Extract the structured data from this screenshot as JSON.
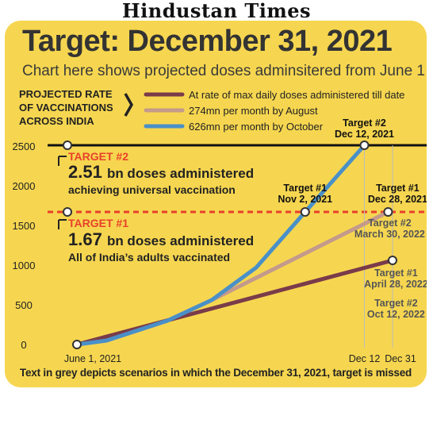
{
  "masthead": "Hindustan Times",
  "title": "Target: December 31, 2021",
  "subtitle": "Chart here shows projected doses adminsitered from June 1",
  "footnote": "Text in grey depicts scenarios in which the December 31, 2021, target is missed",
  "legend": {
    "heading": [
      "PROJECTED RATE",
      "OF VACCINATIONS",
      "ACROSS INDIA"
    ]
  },
  "targets": {
    "t2_label": "TARGET #2",
    "t2_value": "2.51",
    "t2_value_unit": "bn doses administered",
    "t2_desc": "achieving universal vaccination",
    "t1_label": "TARGET #1",
    "t1_value": "1.67",
    "t1_value_unit": "bn doses administered",
    "t1_desc": "All of India’s adults vaccinated"
  },
  "colors": {
    "background": "#f6d650",
    "max_daily": "#7a3b4a",
    "by_august": "#c49a8a",
    "by_october": "#4a90c8",
    "target2_line": "#111111",
    "target1_line": "#e8402a",
    "target_label": "#e8402a"
  },
  "chart_data": {
    "type": "line",
    "x_tick_labels": [
      "June 1, 2021",
      "Dec 12",
      "Dec 31"
    ],
    "x_dates": [
      "2021-06-01",
      "2021-12-12",
      "2021-12-31"
    ],
    "y_ticks": [
      0,
      500,
      1000,
      1500,
      2000,
      2500
    ],
    "ylim": [
      0,
      2600
    ],
    "grid": false,
    "legend_position": "top",
    "series": [
      {
        "name": "At rate of max daily doses administered till date",
        "color": "#7a3b4a",
        "points": [
          [
            "2021-06-01",
            0
          ],
          [
            "2021-12-31",
            1060
          ]
        ]
      },
      {
        "name": "274mn per month by August",
        "color": "#c49a8a",
        "points": [
          [
            "2021-06-01",
            0
          ],
          [
            "2021-06-21",
            50
          ],
          [
            "2021-08-01",
            300
          ],
          [
            "2021-08-31",
            560
          ],
          [
            "2021-12-28",
            1670
          ]
        ]
      },
      {
        "name": "626mn per month by October",
        "color": "#4a90c8",
        "points": [
          [
            "2021-06-01",
            0
          ],
          [
            "2021-06-21",
            50
          ],
          [
            "2021-08-01",
            300
          ],
          [
            "2021-08-31",
            560
          ],
          [
            "2021-09-30",
            970
          ],
          [
            "2021-11-02",
            1670
          ],
          [
            "2021-12-12",
            2510
          ]
        ]
      }
    ],
    "reference_lines": [
      {
        "value": 2510,
        "color": "#111111",
        "style": "solid"
      },
      {
        "value": 1670,
        "color": "#e8402a",
        "style": "dashed"
      }
    ],
    "markers": [
      {
        "x": "2021-06-01",
        "y": 0
      },
      {
        "x": "2021-11-02",
        "y": 1670
      },
      {
        "x": "2021-12-12",
        "y": 2510
      },
      {
        "x": "2021-12-28",
        "y": 1670
      },
      {
        "x": "2021-12-31",
        "y": 1060
      },
      {
        "x": "2021-06-01",
        "y": 2510
      },
      {
        "x": "2021-06-01",
        "y": 1670
      }
    ],
    "annotations": [
      {
        "lines": [
          "Target #2",
          "Dec 12, 2021"
        ],
        "color": "#111111"
      },
      {
        "lines": [
          "Target #1",
          "Nov 2, 2021"
        ],
        "color": "#111111"
      },
      {
        "lines": [
          "Target #1",
          "Dec 28, 2021"
        ],
        "color": "#111111"
      },
      {
        "lines": [
          "Target #2",
          "March 30, 2022"
        ],
        "color": "#555555"
      },
      {
        "lines": [
          "Target #1",
          "April 28, 2022"
        ],
        "color": "#555555"
      },
      {
        "lines": [
          "Target #2",
          "Oct 12, 2022"
        ],
        "color": "#555555"
      }
    ]
  }
}
